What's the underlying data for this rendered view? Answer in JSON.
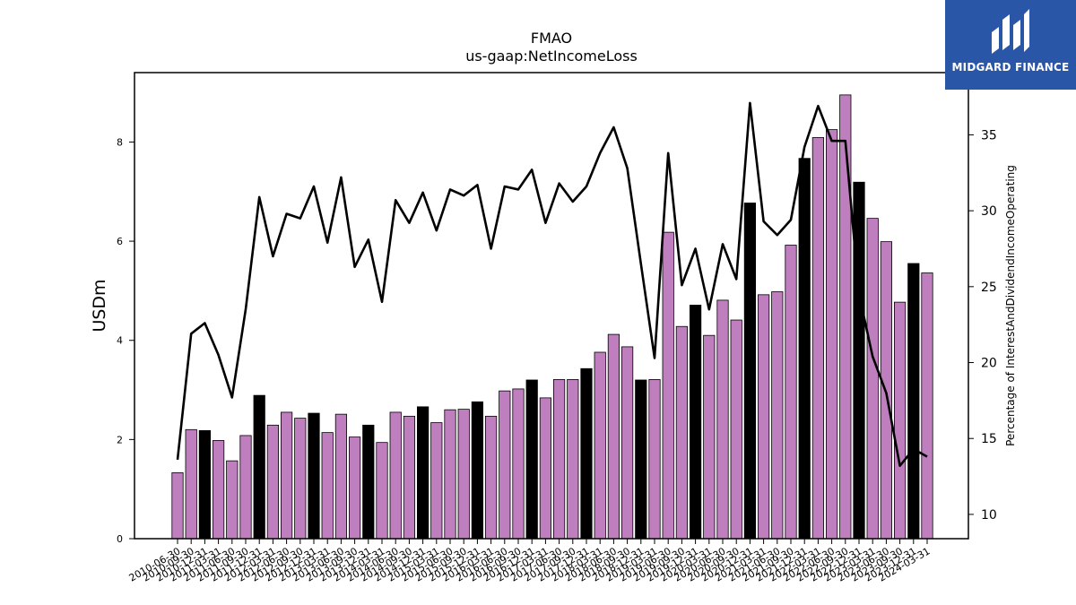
{
  "logo": {
    "text": "MIDGARD FINANCE"
  },
  "colors": {
    "bar_regular": "#bf7fbf",
    "bar_highlight": "#000000",
    "line": "#000000"
  },
  "chart_data": {
    "type": "bar",
    "title": "FMAO",
    "subtitle": "us-gaap:NetIncomeLoss",
    "ylabel": "USDm",
    "y2label": "Percentage of InterestAndDividendIncomeOperating",
    "ylim": [
      0,
      9.4
    ],
    "y2lim": [
      8.4,
      39.1
    ],
    "yticks": [
      0,
      2,
      4,
      6,
      8
    ],
    "y2ticks": [
      10,
      15,
      20,
      25,
      30,
      35
    ],
    "categories": [
      "2010-06-30",
      "2010-09-30",
      "2010-12-31",
      "2011-03-31",
      "2011-06-30",
      "2011-09-30",
      "2011-12-31",
      "2012-03-31",
      "2012-06-30",
      "2012-09-30",
      "2012-12-31",
      "2013-03-31",
      "2013-06-30",
      "2013-09-30",
      "2013-12-31",
      "2014-03-31",
      "2014-06-30",
      "2014-09-30",
      "2014-12-31",
      "2015-03-31",
      "2015-06-30",
      "2015-09-30",
      "2015-12-31",
      "2016-03-31",
      "2016-06-30",
      "2016-09-30",
      "2016-12-31",
      "2017-03-31",
      "2017-06-30",
      "2017-09-30",
      "2017-12-31",
      "2018-03-31",
      "2018-06-30",
      "2018-09-30",
      "2018-12-31",
      "2019-03-31",
      "2019-06-30",
      "2019-09-30",
      "2019-12-31",
      "2020-03-31",
      "2020-06-30",
      "2020-09-30",
      "2020-12-31",
      "2021-03-31",
      "2021-06-30",
      "2021-09-30",
      "2021-12-31",
      "2022-03-31",
      "2022-06-30",
      "2022-09-30",
      "2022-12-31",
      "2023-03-31",
      "2023-06-30",
      "2023-09-30",
      "2023-12-31",
      "2024-03-31"
    ],
    "series": [
      {
        "name": "NetIncomeLoss",
        "axis": "left",
        "values": [
          1.33,
          2.2,
          2.18,
          1.98,
          1.57,
          2.08,
          2.89,
          2.29,
          2.55,
          2.43,
          2.53,
          2.14,
          2.51,
          2.05,
          2.29,
          1.94,
          2.55,
          2.47,
          2.66,
          2.34,
          2.6,
          2.61,
          2.76,
          2.47,
          2.98,
          3.02,
          3.2,
          2.84,
          3.21,
          3.21,
          3.43,
          3.76,
          4.12,
          3.87,
          3.2,
          3.21,
          6.18,
          4.28,
          4.71,
          4.1,
          4.81,
          4.41,
          6.77,
          4.92,
          4.98,
          5.92,
          7.67,
          8.09,
          8.25,
          8.95,
          7.19,
          6.46,
          5.99,
          4.77,
          5.55,
          5.36
        ],
        "highlight": [
          false,
          false,
          true,
          false,
          false,
          false,
          true,
          false,
          false,
          false,
          true,
          false,
          false,
          false,
          true,
          false,
          false,
          false,
          true,
          false,
          false,
          false,
          true,
          false,
          false,
          false,
          true,
          false,
          false,
          false,
          true,
          false,
          false,
          false,
          true,
          false,
          false,
          false,
          true,
          false,
          false,
          false,
          true,
          false,
          false,
          false,
          true,
          false,
          false,
          false,
          true,
          false,
          false,
          false,
          true,
          false
        ]
      },
      {
        "name": "Percentage of InterestAndDividendIncomeOperating",
        "axis": "right",
        "type": "line",
        "values": [
          13.6,
          21.9,
          22.6,
          20.5,
          17.7,
          23.5,
          30.9,
          27,
          29.8,
          29.5,
          31.6,
          27.9,
          32.2,
          26.3,
          28.1,
          24,
          30.7,
          29.2,
          31.2,
          28.7,
          31.4,
          31,
          31.7,
          27.5,
          31.6,
          31.4,
          32.7,
          29.2,
          31.8,
          30.6,
          31.6,
          33.8,
          35.5,
          32.8,
          26.5,
          20.3,
          33.8,
          25.1,
          27.5,
          23.5,
          27.8,
          25.5,
          37.1,
          29.3,
          28.4,
          29.4,
          34.2,
          36.9,
          34.6,
          34.6,
          24.5,
          20.4,
          18.0,
          13.2,
          14.3,
          13.8
        ]
      }
    ]
  }
}
